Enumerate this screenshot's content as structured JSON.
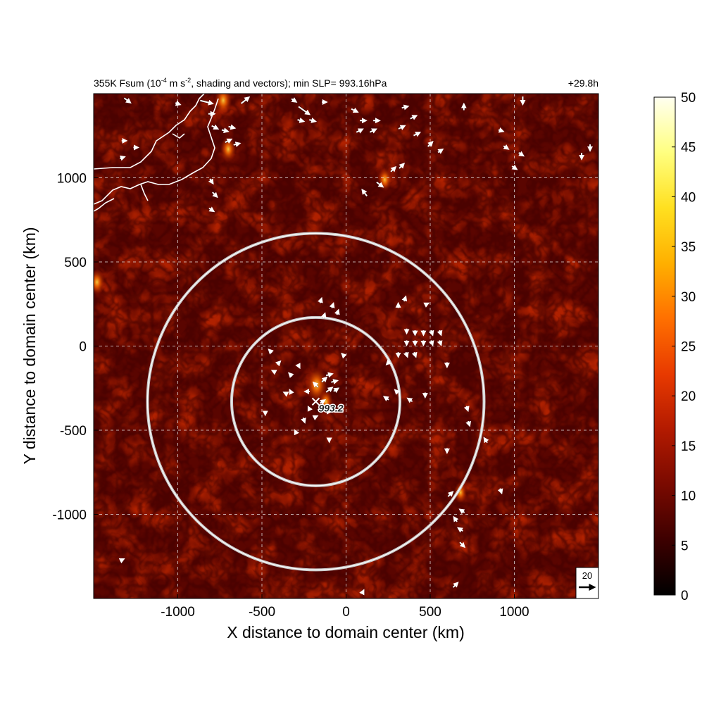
{
  "chart_data": {
    "type": "heatmap",
    "title_left": "355K Fsum (10",
    "title_exp": "-4",
    "title_mid": " m s",
    "title_exp2": "-2",
    "title_right": ", shading and vectors); min SLP= 993.16hPa",
    "title_time": "+29.8h",
    "xlabel": "X distance to domain center (km)",
    "ylabel": "Y distance to domain center (km)",
    "xlim": [
      -1500,
      1500
    ],
    "ylim": [
      -1500,
      1500
    ],
    "xticks": [
      -1000,
      -500,
      0,
      500,
      1000
    ],
    "yticks": [
      -1000,
      -500,
      0,
      500,
      1000
    ],
    "xtick_labels": [
      "-1000",
      "-500",
      "0",
      "500",
      "1000"
    ],
    "ytick_labels": [
      "-1000",
      "-500",
      "0",
      "500",
      "1000"
    ],
    "grid": true,
    "colorbar": {
      "min": 0,
      "max": 50,
      "ticks": [
        0,
        5,
        10,
        15,
        20,
        25,
        30,
        35,
        40,
        45,
        50
      ],
      "tick_labels": [
        "0",
        "5",
        "10",
        "15",
        "20",
        "25",
        "30",
        "35",
        "40",
        "45",
        "50"
      ],
      "colors": [
        "#000000",
        "#3d0000",
        "#7a0a00",
        "#b31a00",
        "#e83a00",
        "#ff7000",
        "#ffb000",
        "#ffe020",
        "#ffff80",
        "#fffff0"
      ]
    },
    "center_marker": {
      "x": -180,
      "y": -330,
      "label": "993.2"
    },
    "circles_km": [
      {
        "cx": -180,
        "cy": -330,
        "r": 500
      },
      {
        "cx": -180,
        "cy": -330,
        "r": 1000
      }
    ],
    "reference_vector": {
      "label": "20"
    },
    "hotspots": [
      {
        "x": -175,
        "y": -230,
        "value": 22
      },
      {
        "x": -700,
        "y": 1170,
        "value": 14
      },
      {
        "x": 230,
        "y": 990,
        "value": 12
      },
      {
        "x": -730,
        "y": 1460,
        "value": 16
      },
      {
        "x": -1480,
        "y": 380,
        "value": 14
      },
      {
        "x": 680,
        "y": -870,
        "value": 10
      },
      {
        "x": -120,
        "y": -330,
        "value": 12
      }
    ],
    "vectors": [
      {
        "x": -1300,
        "y": 1460,
        "u": 8,
        "v": -6
      },
      {
        "x": -1000,
        "y": 1440,
        "u": 6,
        "v": -2
      },
      {
        "x": -830,
        "y": 1450,
        "u": 16,
        "v": -4
      },
      {
        "x": -800,
        "y": 1380,
        "u": 8,
        "v": 0
      },
      {
        "x": -780,
        "y": 1300,
        "u": 8,
        "v": -4
      },
      {
        "x": -720,
        "y": 1280,
        "u": 8,
        "v": -2
      },
      {
        "x": -680,
        "y": 1300,
        "u": 8,
        "v": -2
      },
      {
        "x": -700,
        "y": 1220,
        "u": 8,
        "v": 4
      },
      {
        "x": -650,
        "y": 1200,
        "u": 8,
        "v": 2
      },
      {
        "x": -600,
        "y": 1460,
        "u": 10,
        "v": 8
      },
      {
        "x": -310,
        "y": 1460,
        "u": 6,
        "v": -4
      },
      {
        "x": -250,
        "y": 1400,
        "u": 14,
        "v": -10
      },
      {
        "x": -270,
        "y": 1340,
        "u": 8,
        "v": -2
      },
      {
        "x": -200,
        "y": 1340,
        "u": 8,
        "v": -2
      },
      {
        "x": -130,
        "y": 1450,
        "u": 6,
        "v": 0
      },
      {
        "x": 50,
        "y": 1400,
        "u": 8,
        "v": -4
      },
      {
        "x": 100,
        "y": 1340,
        "u": 8,
        "v": 0
      },
      {
        "x": 180,
        "y": 1340,
        "u": 8,
        "v": 0
      },
      {
        "x": 80,
        "y": 1280,
        "u": 8,
        "v": 4
      },
      {
        "x": 160,
        "y": 1280,
        "u": 8,
        "v": 4
      },
      {
        "x": 350,
        "y": 1420,
        "u": 8,
        "v": 2
      },
      {
        "x": 400,
        "y": 1360,
        "u": 8,
        "v": 4
      },
      {
        "x": 330,
        "y": 1300,
        "u": 8,
        "v": 4
      },
      {
        "x": 420,
        "y": 1260,
        "u": 8,
        "v": 4
      },
      {
        "x": 500,
        "y": 1200,
        "u": 6,
        "v": 6
      },
      {
        "x": 560,
        "y": 1160,
        "u": 6,
        "v": 4
      },
      {
        "x": 330,
        "y": 1070,
        "u": 6,
        "v": 6
      },
      {
        "x": 280,
        "y": 1050,
        "u": 6,
        "v": 6
      },
      {
        "x": 200,
        "y": 960,
        "u": 8,
        "v": -6
      },
      {
        "x": 110,
        "y": 910,
        "u": -6,
        "v": 8
      },
      {
        "x": 700,
        "y": 1420,
        "u": 0,
        "v": 8
      },
      {
        "x": 920,
        "y": 1280,
        "u": 6,
        "v": -2
      },
      {
        "x": 950,
        "y": 1180,
        "u": 6,
        "v": -4
      },
      {
        "x": 1000,
        "y": 1060,
        "u": 6,
        "v": -4
      },
      {
        "x": 1040,
        "y": 1140,
        "u": 6,
        "v": -4
      },
      {
        "x": 1050,
        "y": 1460,
        "u": 0,
        "v": -10
      },
      {
        "x": 1450,
        "y": 1180,
        "u": 0,
        "v": -8
      },
      {
        "x": 1400,
        "y": 1130,
        "u": 0,
        "v": -8
      },
      {
        "x": -1320,
        "y": 1220,
        "u": 6,
        "v": 0
      },
      {
        "x": -1250,
        "y": 1180,
        "u": 6,
        "v": 0
      },
      {
        "x": -800,
        "y": 980,
        "u": 4,
        "v": -6
      },
      {
        "x": -780,
        "y": 900,
        "u": 6,
        "v": -6
      },
      {
        "x": -800,
        "y": 810,
        "u": 6,
        "v": -4
      },
      {
        "x": -1330,
        "y": 1120,
        "u": 6,
        "v": 2
      },
      {
        "x": -150,
        "y": 270,
        "u": 2,
        "v": 6
      },
      {
        "x": -80,
        "y": 240,
        "u": 2,
        "v": 6
      },
      {
        "x": -50,
        "y": 200,
        "u": 2,
        "v": 6
      },
      {
        "x": -130,
        "y": 180,
        "u": 2,
        "v": 6
      },
      {
        "x": 310,
        "y": 240,
        "u": 0,
        "v": 6
      },
      {
        "x": 350,
        "y": 280,
        "u": 2,
        "v": 6
      },
      {
        "x": 480,
        "y": 250,
        "u": 4,
        "v": 2
      },
      {
        "x": 360,
        "y": 90,
        "u": 0,
        "v": -6
      },
      {
        "x": 410,
        "y": 80,
        "u": 0,
        "v": -6
      },
      {
        "x": 460,
        "y": 80,
        "u": 0,
        "v": -6
      },
      {
        "x": 510,
        "y": 80,
        "u": 2,
        "v": -6
      },
      {
        "x": 560,
        "y": 80,
        "u": 2,
        "v": -6
      },
      {
        "x": 360,
        "y": 20,
        "u": 0,
        "v": -6
      },
      {
        "x": 410,
        "y": 20,
        "u": 0,
        "v": -6
      },
      {
        "x": 460,
        "y": 20,
        "u": 0,
        "v": -6
      },
      {
        "x": 510,
        "y": 20,
        "u": 2,
        "v": -6
      },
      {
        "x": 560,
        "y": 20,
        "u": 2,
        "v": -6
      },
      {
        "x": 310,
        "y": -50,
        "u": 0,
        "v": -6
      },
      {
        "x": 360,
        "y": -50,
        "u": 2,
        "v": -6
      },
      {
        "x": 410,
        "y": -50,
        "u": 2,
        "v": -6
      },
      {
        "x": 600,
        "y": -110,
        "u": 0,
        "v": -6
      },
      {
        "x": 250,
        "y": -100,
        "u": -4,
        "v": -4
      },
      {
        "x": 240,
        "y": -310,
        "u": -6,
        "v": 4
      },
      {
        "x": 300,
        "y": -270,
        "u": -4,
        "v": 4
      },
      {
        "x": 380,
        "y": -320,
        "u": -6,
        "v": 4
      },
      {
        "x": 470,
        "y": -290,
        "u": 0,
        "v": -6
      },
      {
        "x": 720,
        "y": -370,
        "u": 2,
        "v": -6
      },
      {
        "x": 730,
        "y": -460,
        "u": 2,
        "v": -6
      },
      {
        "x": 830,
        "y": -560,
        "u": -4,
        "v": 6
      },
      {
        "x": 600,
        "y": -620,
        "u": 0,
        "v": -6
      },
      {
        "x": 920,
        "y": -860,
        "u": 2,
        "v": -6
      },
      {
        "x": 620,
        "y": -880,
        "u": 6,
        "v": 6
      },
      {
        "x": 690,
        "y": -980,
        "u": -6,
        "v": 4
      },
      {
        "x": 650,
        "y": -1030,
        "u": -4,
        "v": 6
      },
      {
        "x": 680,
        "y": -1090,
        "u": -6,
        "v": 4
      },
      {
        "x": 690,
        "y": -1180,
        "u": 6,
        "v": -6
      },
      {
        "x": 650,
        "y": -1420,
        "u": 6,
        "v": 6
      },
      {
        "x": 100,
        "y": -1460,
        "u": 2,
        "v": 4
      },
      {
        "x": -1330,
        "y": -1270,
        "u": 4,
        "v": 2
      },
      {
        "x": -450,
        "y": -30,
        "u": -4,
        "v": 4
      },
      {
        "x": -400,
        "y": -100,
        "u": 4,
        "v": 4
      },
      {
        "x": -430,
        "y": -150,
        "u": -4,
        "v": 2
      },
      {
        "x": -330,
        "y": -170,
        "u": -4,
        "v": 4
      },
      {
        "x": -280,
        "y": -120,
        "u": 2,
        "v": -4
      },
      {
        "x": -330,
        "y": -270,
        "u": -2,
        "v": 4
      },
      {
        "x": -360,
        "y": -280,
        "u": -4,
        "v": 2
      },
      {
        "x": -230,
        "y": -270,
        "u": -6,
        "v": 0
      },
      {
        "x": -180,
        "y": -230,
        "u": -6,
        "v": 6
      },
      {
        "x": -130,
        "y": -200,
        "u": 6,
        "v": 6
      },
      {
        "x": -100,
        "y": -170,
        "u": 8,
        "v": 2
      },
      {
        "x": -70,
        "y": -210,
        "u": 8,
        "v": 2
      },
      {
        "x": -100,
        "y": -260,
        "u": 8,
        "v": 6
      },
      {
        "x": -60,
        "y": -260,
        "u": 6,
        "v": 4
      },
      {
        "x": -20,
        "y": -50,
        "u": -2,
        "v": 2
      },
      {
        "x": -220,
        "y": -370,
        "u": -2,
        "v": 4
      },
      {
        "x": -140,
        "y": -330,
        "u": 6,
        "v": 4
      },
      {
        "x": -250,
        "y": -440,
        "u": 2,
        "v": -6
      },
      {
        "x": -300,
        "y": -510,
        "u": -2,
        "v": 4
      },
      {
        "x": -480,
        "y": -400,
        "u": 0,
        "v": -4
      },
      {
        "x": -180,
        "y": -420,
        "u": 4,
        "v": 2
      },
      {
        "x": -100,
        "y": -390,
        "u": 4,
        "v": 0
      },
      {
        "x": -100,
        "y": -560,
        "u": 0,
        "v": -4
      }
    ]
  }
}
